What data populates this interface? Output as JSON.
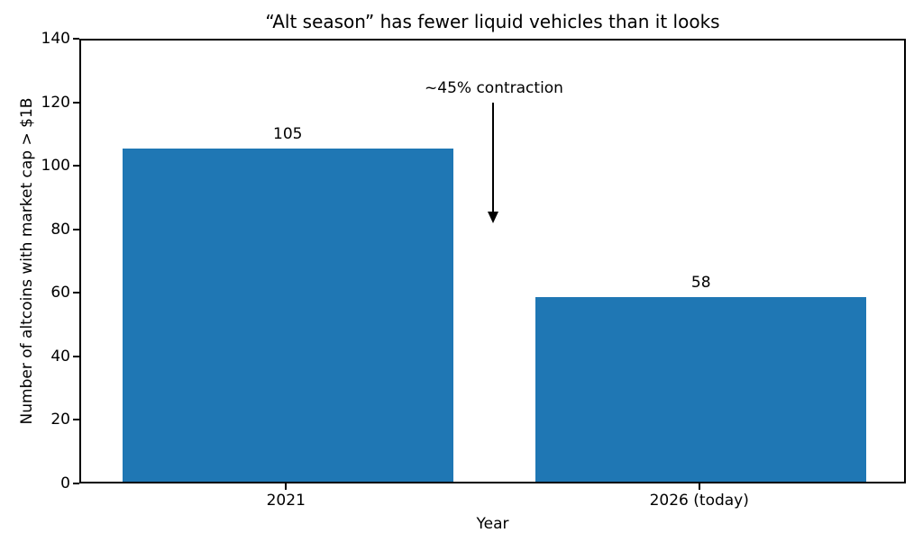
{
  "chart_data": {
    "type": "bar",
    "title": "“Alt season” has fewer liquid vehicles than it looks",
    "xlabel": "Year",
    "ylabel": "Number of altcoins with market cap > $1B",
    "categories": [
      "2021",
      "2026 (today)"
    ],
    "values": [
      105,
      58
    ],
    "bar_labels": [
      "105",
      "58"
    ],
    "ylim": [
      0,
      140
    ],
    "yticks": [
      0,
      20,
      40,
      60,
      80,
      100,
      120,
      140
    ],
    "bar_color": "#1f77b4",
    "grid": false,
    "legend_position": "none",
    "annotation": {
      "text": "~45% contraction",
      "arrow_direction": "down"
    }
  }
}
